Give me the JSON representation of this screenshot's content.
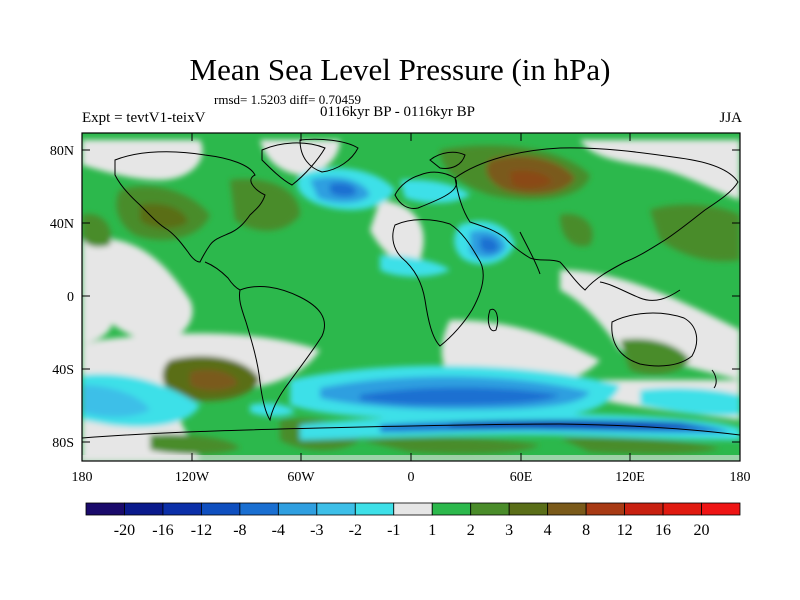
{
  "title": "Mean Sea Level Pressure (in hPa)",
  "stats_line": "rmsd= 1.5203 diff= 0.70459",
  "experiment": "Expt = tevtV1-teixV",
  "period": "0116kyr BP - 0116kyr BP",
  "season": "JJA",
  "lat_labels": [
    "80N",
    "40N",
    "0",
    "40S",
    "80S"
  ],
  "lon_labels": [
    "180",
    "120W",
    "60W",
    "0",
    "60E",
    "120E",
    "180"
  ],
  "colorbar": {
    "labels": [
      "-20",
      "-16",
      "-12",
      "-8",
      "-4",
      "-3",
      "-2",
      "-1",
      "1",
      "2",
      "3",
      "4",
      "8",
      "12",
      "16",
      "20"
    ],
    "colors": [
      "#1a0a6b",
      "#0a1a8c",
      "#0b2fa8",
      "#0f4fbf",
      "#1a6fd1",
      "#2f9fe0",
      "#3dbfe8",
      "#3ee0e8",
      "#e6e6e6",
      "#2cb84c",
      "#4a8c2a",
      "#5a6e18",
      "#7a5a1a",
      "#a83a14",
      "#c82010",
      "#e01a10",
      "#ee1414"
    ]
  }
}
